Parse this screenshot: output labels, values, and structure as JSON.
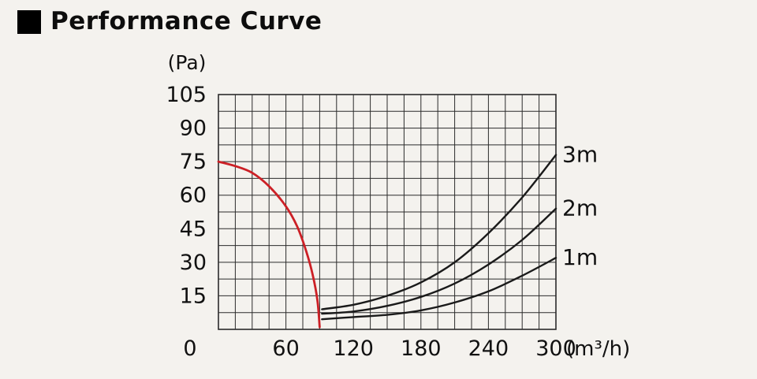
{
  "header": {
    "title": "Performance Curve"
  },
  "chart_data": {
    "type": "line",
    "title": "Performance Curve",
    "x_unit": "(m³/h)",
    "y_unit": "(Pa)",
    "xlim": [
      0,
      300
    ],
    "ylim": [
      0,
      105
    ],
    "x_ticks": [
      0,
      60,
      120,
      180,
      240,
      300
    ],
    "y_ticks": [
      15,
      30,
      45,
      60,
      75,
      90,
      105
    ],
    "x_grid_step": 15,
    "y_grid_step": 7.5,
    "grid": true,
    "grid_color": "#2b2b2b",
    "series": [
      {
        "name": "pressure-curve",
        "label": "",
        "color": "#cc2026",
        "width": 2.8,
        "points": [
          [
            0,
            75
          ],
          [
            15,
            73
          ],
          [
            30,
            70
          ],
          [
            45,
            64
          ],
          [
            60,
            55
          ],
          [
            70,
            46
          ],
          [
            78,
            35
          ],
          [
            84,
            24
          ],
          [
            88,
            13
          ],
          [
            90,
            1
          ]
        ]
      },
      {
        "name": "3m",
        "label": "3m",
        "color": "#1a1a1a",
        "width": 2.4,
        "points": [
          [
            92,
            9
          ],
          [
            120,
            11
          ],
          [
            150,
            15
          ],
          [
            180,
            21
          ],
          [
            210,
            30
          ],
          [
            240,
            43
          ],
          [
            270,
            59
          ],
          [
            300,
            78
          ]
        ]
      },
      {
        "name": "2m",
        "label": "2m",
        "color": "#1a1a1a",
        "width": 2.4,
        "points": [
          [
            92,
            7
          ],
          [
            120,
            8
          ],
          [
            150,
            10.5
          ],
          [
            180,
            14.5
          ],
          [
            210,
            20.5
          ],
          [
            240,
            29
          ],
          [
            270,
            40
          ],
          [
            300,
            54
          ]
        ]
      },
      {
        "name": "1m",
        "label": "1m",
        "color": "#1a1a1a",
        "width": 2.4,
        "points": [
          [
            92,
            4.5
          ],
          [
            120,
            5.5
          ],
          [
            150,
            6.5
          ],
          [
            180,
            8.5
          ],
          [
            210,
            12
          ],
          [
            240,
            17
          ],
          [
            270,
            24
          ],
          [
            300,
            32
          ]
        ]
      }
    ]
  }
}
